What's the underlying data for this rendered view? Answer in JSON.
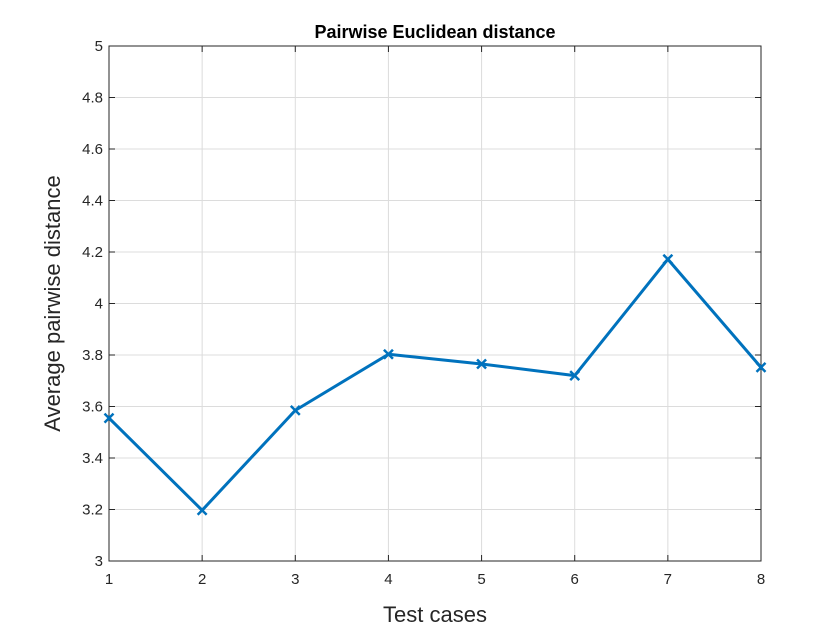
{
  "chart_data": {
    "type": "line",
    "title": "Pairwise Euclidean distance",
    "xlabel": "Test cases",
    "ylabel": "Average pairwise distance",
    "xlim": [
      1,
      8
    ],
    "ylim": [
      3,
      5
    ],
    "xticks": [
      1,
      2,
      3,
      4,
      5,
      6,
      7,
      8
    ],
    "xtick_labels": [
      "1",
      "2",
      "3",
      "4",
      "5",
      "6",
      "7",
      "8"
    ],
    "yticks": [
      3,
      3.2,
      3.4,
      3.6,
      3.8,
      4,
      4.2,
      4.4,
      4.6,
      4.8,
      5
    ],
    "ytick_labels": [
      "3",
      "3.2",
      "3.4",
      "3.6",
      "3.8",
      "4",
      "4.2",
      "4.4",
      "4.6",
      "4.8",
      "5"
    ],
    "grid": true,
    "marker": "x",
    "color": "#0072bd",
    "series": [
      {
        "x": [
          1,
          2,
          3,
          4,
          5,
          6,
          7,
          8
        ],
        "values": [
          3.555,
          3.197,
          3.585,
          3.803,
          3.765,
          3.72,
          4.172,
          3.752
        ]
      }
    ]
  }
}
